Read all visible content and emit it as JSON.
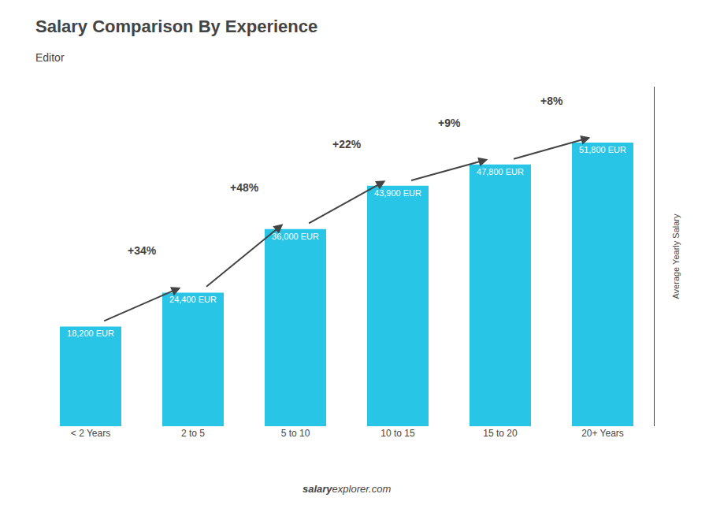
{
  "chart_data": {
    "type": "bar",
    "title": "Salary Comparison By Experience",
    "subtitle": "Editor",
    "ylabel": "Average Yearly Salary",
    "source": [
      "salary",
      "explorer.com"
    ],
    "categories": [
      "< 2 Years",
      "2 to 5",
      "5 to 10",
      "10 to 15",
      "15 to 20",
      "20+ Years"
    ],
    "values": [
      18200,
      24400,
      36000,
      43900,
      47800,
      51800
    ],
    "value_labels": [
      "18,200 EUR",
      "24,400 EUR",
      "36,000 EUR",
      "43,900 EUR",
      "47,800 EUR",
      "51,800 EUR"
    ],
    "data_labels": true,
    "annotations": [
      "+34%",
      "+48%",
      "+22%",
      "+9%",
      "+8%"
    ],
    "color": "#29c5e6",
    "ylim": [
      0,
      62000
    ],
    "tick_labels": "x",
    "grid": false
  }
}
